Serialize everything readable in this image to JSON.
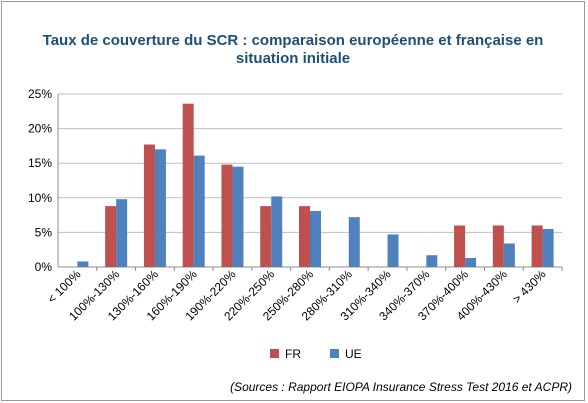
{
  "chart_data": {
    "type": "bar",
    "title_lines": [
      "Taux de couverture du SCR : comparaison européenne et française en",
      "situation initiale"
    ],
    "categories": [
      "< 100%",
      "100%-130%",
      "130%-160%",
      "160%-190%",
      "190%-220%",
      "220%-250%",
      "250%-280%",
      "280%-310%",
      "310%-340%",
      "340%-370%",
      "370%-400%",
      "400%-430%",
      "> 430%"
    ],
    "series": [
      {
        "name": "FR",
        "color": "#c0504d",
        "values": [
          0,
          8.8,
          17.7,
          23.6,
          14.8,
          8.8,
          8.8,
          0,
          0,
          0,
          6.0,
          6.0,
          6.0
        ]
      },
      {
        "name": "UE",
        "color": "#4f81bd",
        "values": [
          0.8,
          9.8,
          17.0,
          16.1,
          14.5,
          10.2,
          8.1,
          7.2,
          4.7,
          1.7,
          1.3,
          3.4,
          5.5
        ]
      }
    ],
    "ylim": [
      0,
      25
    ],
    "yticks": [
      0,
      5,
      10,
      15,
      20,
      25
    ],
    "ytick_labels": [
      "0%",
      "5%",
      "10%",
      "15%",
      "20%",
      "25%"
    ],
    "grid": true,
    "legend_position": "bottom"
  },
  "source_note": "(Sources : Rapport EIOPA Insurance Stress Test 2016 et ACPR)"
}
